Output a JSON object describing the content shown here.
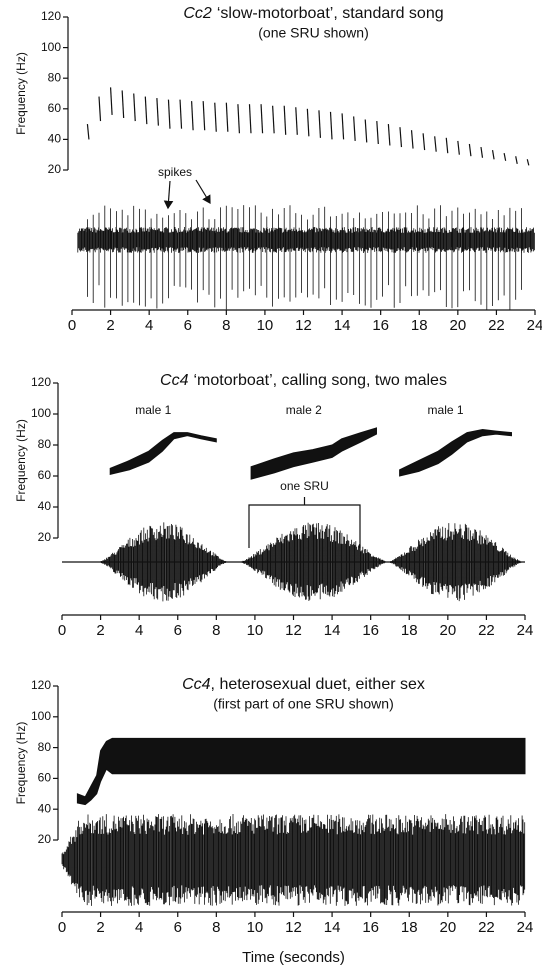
{
  "chart_data": [
    {
      "type": "pulse-train",
      "title_species": "Cc2",
      "title": "‘slow-motorboat’, standard song",
      "subtitle": "(one SRU shown)",
      "ylabel": "Frequency (Hz)",
      "annotation": "spikes",
      "xlim": [
        0,
        24
      ],
      "xticks": [
        0,
        2,
        4,
        6,
        8,
        10,
        12,
        14,
        16,
        18,
        20,
        22,
        24
      ],
      "ylim": [
        20,
        120
      ],
      "yticks": [
        20,
        40,
        60,
        80,
        100,
        120
      ],
      "color": "#111111",
      "series": [
        {
          "x": [
            0.8,
            1.4,
            2,
            2.6,
            3.2,
            3.8,
            4.4,
            5,
            5.6,
            6.2,
            6.8,
            7.4,
            8,
            8.6,
            9.2,
            9.8,
            10.4,
            11,
            11.6,
            12.2,
            12.8,
            13.4,
            14,
            14.6,
            15.2,
            15.8,
            16.4,
            17,
            17.6,
            18.2,
            18.8,
            19.4,
            20,
            20.6,
            21.2,
            21.8,
            22.4,
            23,
            23.6
          ],
          "high": [
            50,
            68,
            74,
            72,
            70,
            68,
            67,
            66,
            66,
            65,
            65,
            64,
            64,
            63,
            63,
            63,
            62,
            62,
            61,
            60,
            59,
            58,
            57,
            55,
            53,
            52,
            50,
            48,
            46,
            44,
            42,
            41,
            39,
            37,
            35,
            33,
            31,
            29,
            27
          ],
          "low": [
            40,
            52,
            56,
            54,
            52,
            50,
            49,
            47,
            47,
            46,
            46,
            45,
            45,
            44,
            44,
            44,
            44,
            43,
            43,
            42,
            41,
            40,
            40,
            39,
            38,
            37,
            36,
            35,
            34,
            33,
            32,
            31,
            30,
            29,
            28,
            27,
            26,
            24,
            23
          ]
        }
      ]
    },
    {
      "type": "chirps",
      "title_species": "Cc4",
      "title": "‘motorboat’, calling song, two males",
      "ylabel": "Frequency (Hz)",
      "annotation": "one SRU",
      "xlim": [
        0,
        24
      ],
      "xticks": [
        0,
        2,
        4,
        6,
        8,
        10,
        12,
        14,
        16,
        18,
        20,
        22,
        24
      ],
      "ylim": [
        20,
        120
      ],
      "yticks": [
        20,
        40,
        60,
        80,
        100,
        120
      ],
      "color": "#111111",
      "series": [
        {
          "name": "male 1",
          "x": [
            2.5,
            3.5,
            4.5,
            5.2,
            5.8,
            6.5,
            7.2,
            8
          ],
          "high": [
            65,
            70,
            76,
            83,
            88,
            88,
            86,
            84
          ],
          "low": [
            61,
            64,
            69,
            76,
            84,
            86,
            84,
            82
          ]
        },
        {
          "name": "male 2",
          "x": [
            9.8,
            11,
            12,
            13,
            14,
            14.5,
            15.5,
            16.3
          ],
          "high": [
            66,
            71,
            75,
            77,
            80,
            84,
            88,
            91
          ],
          "low": [
            58,
            62,
            66,
            69,
            72,
            76,
            82,
            87
          ]
        },
        {
          "name": "male 1",
          "x": [
            17.5,
            18.5,
            19.5,
            20.2,
            21,
            21.8,
            22.5,
            23.3
          ],
          "high": [
            64,
            70,
            76,
            82,
            88,
            90,
            89,
            88
          ],
          "low": [
            60,
            63,
            68,
            74,
            82,
            86,
            87,
            86
          ]
        }
      ]
    },
    {
      "type": "duet",
      "title_species": "Cc4",
      "title": ", heterosexual duet, either sex",
      "subtitle": "(first part of one SRU shown)",
      "ylabel": "Frequency (Hz)",
      "xlabel": "Time  (seconds)",
      "xlim": [
        0,
        24
      ],
      "xticks": [
        0,
        2,
        4,
        6,
        8,
        10,
        12,
        14,
        16,
        18,
        20,
        22,
        24
      ],
      "ylim": [
        20,
        120
      ],
      "yticks": [
        20,
        40,
        60,
        80,
        100,
        120
      ],
      "color": "#111111",
      "series": [
        {
          "x": [
            0.8,
            1.2,
            1.5,
            1.8,
            2,
            2.3,
            2.6,
            24
          ],
          "high": [
            50,
            48,
            55,
            62,
            78,
            84,
            86,
            86
          ],
          "low": [
            44,
            43,
            46,
            50,
            58,
            66,
            63,
            63
          ]
        }
      ]
    }
  ]
}
